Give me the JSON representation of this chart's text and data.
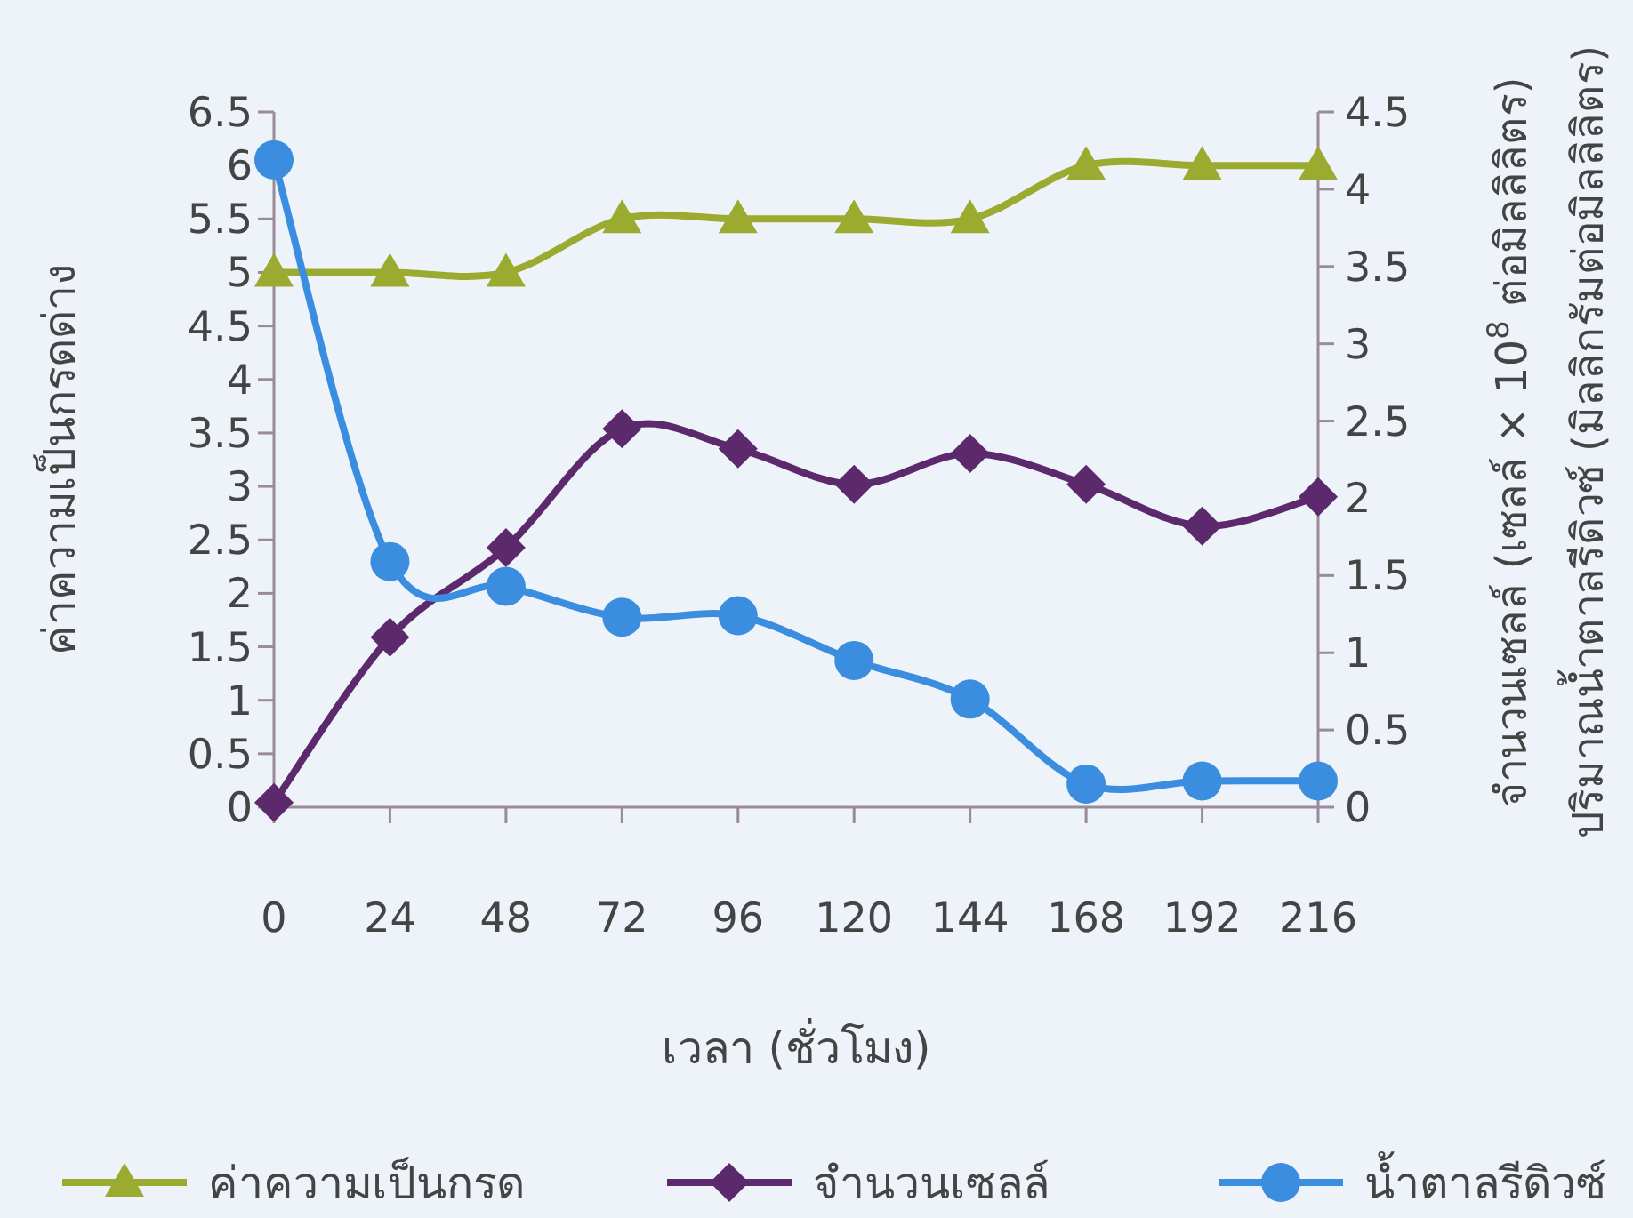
{
  "chart_data": {
    "type": "line",
    "xlabel": "เวลา (ชั่วโมง)",
    "ylabel": "ค่าความเป็นกรดด่าง",
    "y2label": "จำนวนเซลล์ (เซลล์ × 10$^{8}$ ต่อมิลลิลิตร)\nปริมาณน้ำตาลรีดิวซ์ (มิลลิกรัมต่อมิลลิลิตร)",
    "x": [
      0,
      24,
      48,
      72,
      96,
      120,
      144,
      168,
      192,
      216
    ],
    "xlim": [
      0,
      216
    ],
    "xticks": [
      0,
      24,
      48,
      72,
      96,
      120,
      144,
      168,
      192,
      216
    ],
    "ylim": [
      0,
      6.5
    ],
    "yticks": [
      0,
      0.5,
      1,
      1.5,
      2,
      2.5,
      3,
      3.5,
      4,
      4.5,
      5,
      5.5,
      6,
      6.5
    ],
    "y2lim": [
      0,
      4.5
    ],
    "y2ticks": [
      0,
      0.5,
      1,
      1.5,
      2,
      2.5,
      3,
      3.5,
      4,
      4.5
    ],
    "legend": "bottom",
    "line_style": "solid",
    "series": [
      {
        "name": "ค่าความเป็นกรด",
        "color": "#9aab2f",
        "marker": "triangle",
        "values": [
          5,
          5,
          5,
          5.5,
          5.5,
          5.5,
          5.5,
          6,
          6,
          6
        ]
      },
      {
        "name": "จำนวนเซลล์",
        "color": "#5c2a6c",
        "marker": "diamond",
        "axis": "y2",
        "values": [
          0.03,
          1.1,
          1.68,
          2.45,
          2.32,
          2.09,
          2.29,
          2.09,
          1.82,
          2.01
        ]
      },
      {
        "name": "น้ำตาลรีดิวซ์",
        "color": "#3b8de0",
        "marker": "circle",
        "axis": "y2",
        "values": [
          4.19,
          1.59,
          1.43,
          1.23,
          1.24,
          0.95,
          0.7,
          0.15,
          0.17,
          0.17
        ]
      }
    ]
  }
}
